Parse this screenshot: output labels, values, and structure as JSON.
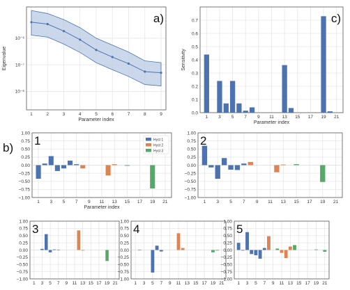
{
  "colors": {
    "hyst1": "#4c72b0",
    "hyst2": "#dd8452",
    "hyst3": "#55a868",
    "line": "#4c72b0",
    "band": "#b9cbe4",
    "grid": "#e6e6e6",
    "axis": "#555555"
  },
  "chart_data": [
    {
      "id": "a",
      "type": "line",
      "panel_label": "a)",
      "xlabel": "Parameter index",
      "ylabel": "Eigenvalue",
      "yscale": "log",
      "ylim": [
        2e-09,
        1.5e-05
      ],
      "xlim": [
        0.7,
        9.3
      ],
      "x": [
        1,
        2,
        3,
        4,
        5,
        6,
        7,
        8,
        9
      ],
      "xticks": [
        "1",
        "2",
        "3",
        "4",
        "5",
        "6",
        "7",
        "8",
        "9"
      ],
      "yticks": [
        {
          "v": 1e-06,
          "label": "10⁻⁶"
        },
        {
          "v": 1e-07,
          "label": "10⁻⁷"
        },
        {
          "v": 1e-08,
          "label": "10⁻⁸"
        }
      ],
      "series": [
        {
          "values": [
            4e-06,
            3.4e-06,
            1.85e-06,
            8.8e-07,
            3.6e-07,
            1.95e-07,
            1.1e-07,
            5.5e-08,
            5e-08
          ],
          "band_upper": [
            1.1e-05,
            8.5e-06,
            5e-06,
            2.5e-06,
            1e-06,
            5.5e-07,
            3e-07,
            1.4e-07,
            1.2e-07
          ],
          "band_lower": [
            1.3e-06,
            1.1e-06,
            6e-07,
            2.9e-07,
            1.2e-07,
            6.5e-08,
            3.6e-08,
            1.8e-08,
            1.6e-08
          ]
        }
      ],
      "grid": true
    },
    {
      "id": "c",
      "type": "bar",
      "panel_label": "c)",
      "xlabel": "Parameter index",
      "ylabel": "Sensitivity",
      "ylim": [
        0,
        0.8
      ],
      "xlim": [
        0,
        22
      ],
      "yticks": [
        0.0,
        0.1,
        0.2,
        0.3,
        0.4,
        0.5,
        0.6,
        0.7
      ],
      "xticks": [
        1,
        3,
        5,
        7,
        9,
        11,
        13,
        15,
        17,
        19,
        21
      ],
      "x": [
        1,
        2,
        3,
        4,
        5,
        6,
        7,
        8,
        9,
        10,
        11,
        12,
        13,
        14,
        15,
        16,
        17,
        18,
        19,
        20,
        21
      ],
      "values": [
        0.44,
        0.0,
        0.24,
        0.07,
        0.24,
        0.07,
        0.015,
        0.04,
        0.0,
        0.0,
        0.0,
        0.0,
        0.36,
        0.035,
        0.0,
        0.0,
        0.0,
        0.0,
        0.73,
        0.01,
        0.0
      ],
      "grid": true
    },
    {
      "id": "b1",
      "type": "bar",
      "panel_label": "1",
      "xlabel": "Parameter index",
      "ylim": [
        -1.0,
        1.0
      ],
      "xlim": [
        0,
        22
      ],
      "yticks": [
        1.0,
        0.75,
        0.5,
        0.25,
        0.0,
        -0.25,
        -0.5,
        -0.75,
        -1.0
      ],
      "ytick_labels": [
        "1.00",
        "0.75",
        "0.50",
        "0.25",
        "0.00",
        "−0.25",
        "−0.50",
        "−0.75",
        "−1.00"
      ],
      "xticks": [
        1,
        3,
        5,
        7,
        9,
        11,
        13,
        15,
        17,
        19,
        21
      ],
      "legend": [
        "Hyst 1",
        "Hyst 2",
        "Hyst 3"
      ],
      "series": [
        {
          "name": "Hyst 1",
          "x": [
            1,
            2,
            3,
            4,
            5,
            6,
            7
          ],
          "values": [
            -0.42,
            0.05,
            0.28,
            -0.18,
            -0.1,
            0.14,
            0.03
          ]
        },
        {
          "name": "Hyst 2",
          "x": [
            8,
            12,
            13
          ],
          "values": [
            -0.1,
            -0.32,
            0.03
          ]
        },
        {
          "name": "Hyst 3",
          "x": [
            15,
            19
          ],
          "values": [
            -0.02,
            -0.72
          ]
        }
      ],
      "grid": true
    },
    {
      "id": "b2",
      "type": "bar",
      "panel_label": "2",
      "ylim": [
        -1.0,
        1.0
      ],
      "xlim": [
        0,
        22
      ],
      "yticks": [
        1.0,
        0.75,
        0.5,
        0.25,
        0.0,
        -0.25,
        -0.5,
        -0.75,
        -1.0
      ],
      "ytick_labels": [
        "1.00",
        "0.75",
        "0.50",
        "0.25",
        "0.00",
        "−0.25",
        "−0.50",
        "−0.75",
        "−1.00"
      ],
      "xticks": [
        1,
        3,
        5,
        7,
        9,
        11,
        13,
        15,
        17,
        19,
        21
      ],
      "series": [
        {
          "name": "Hyst 1",
          "x": [
            1,
            2,
            3,
            4,
            5,
            6,
            7
          ],
          "values": [
            0.6,
            -0.07,
            -0.42,
            0.22,
            -0.14,
            -0.15,
            0.05
          ]
        },
        {
          "name": "Hyst 2",
          "x": [
            8,
            12,
            13
          ],
          "values": [
            0.1,
            -0.22,
            0.02
          ]
        },
        {
          "name": "Hyst 3",
          "x": [
            15,
            19
          ],
          "values": [
            0.03,
            -0.52
          ]
        }
      ],
      "grid": true
    },
    {
      "id": "b3",
      "type": "bar",
      "panel_label": "3",
      "ylim": [
        -1.0,
        1.0
      ],
      "xlim": [
        0,
        22
      ],
      "yticks": [
        1.0,
        0.75,
        0.5,
        0.25,
        0.0,
        -0.25,
        -0.5,
        -0.75,
        -1.0
      ],
      "ytick_labels": [
        "1.00",
        "0.75",
        "0.50",
        "0.25",
        "0.00",
        "−0.25",
        "−0.50",
        "−0.75",
        "−1.00"
      ],
      "xticks": [
        1,
        3,
        5,
        7,
        9,
        11,
        13,
        15,
        17,
        19,
        21
      ],
      "series": [
        {
          "name": "Hyst 1",
          "x": [
            3,
            4,
            5,
            6,
            7
          ],
          "values": [
            0.04,
            0.55,
            -0.08,
            0.02,
            0.01
          ]
        },
        {
          "name": "Hyst 2",
          "x": [
            12,
            13
          ],
          "values": [
            0.68,
            -0.02
          ]
        },
        {
          "name": "Hyst 3",
          "x": [
            19
          ],
          "values": [
            -0.38
          ]
        }
      ],
      "grid": true
    },
    {
      "id": "b4",
      "type": "bar",
      "panel_label": "4",
      "ylim": [
        -1.0,
        1.0
      ],
      "xlim": [
        0,
        22
      ],
      "yticks": [
        1.0,
        0.75,
        0.5,
        0.25,
        0.0,
        -0.25,
        -0.5,
        -0.75,
        -1.0
      ],
      "ytick_labels": [
        "1.00",
        "0.75",
        "0.50",
        "0.25",
        "0.00",
        "−0.25",
        "−0.50",
        "−0.75",
        "−1.00"
      ],
      "xticks": [
        1,
        3,
        5,
        7,
        9,
        11,
        13,
        15,
        17,
        19,
        21
      ],
      "series": [
        {
          "name": "Hyst 1",
          "x": [
            2,
            5,
            6,
            7
          ],
          "values": [
            -0.01,
            -0.78,
            0.15,
            -0.05
          ]
        },
        {
          "name": "Hyst 2",
          "x": [
            11,
            12
          ],
          "values": [
            0.58,
            0.07
          ]
        },
        {
          "name": "Hyst 3",
          "x": [
            19,
            20
          ],
          "values": [
            -0.08,
            -0.02
          ]
        }
      ],
      "grid": true
    },
    {
      "id": "b5",
      "type": "bar",
      "panel_label": "5",
      "ylim": [
        -1.0,
        1.0
      ],
      "xlim": [
        0,
        22
      ],
      "yticks": [
        1.0,
        0.75,
        0.5,
        0.25,
        0.0,
        -0.25,
        -0.5,
        -0.75,
        -1.0
      ],
      "ytick_labels": [
        "1.00",
        "0.75",
        "0.50",
        "0.25",
        "0.00",
        "−0.25",
        "−0.50",
        "−0.75",
        "−1.00"
      ],
      "xticks": [
        1,
        3,
        5,
        7,
        9,
        11,
        13,
        15,
        17,
        19,
        21
      ],
      "series": [
        {
          "name": "Hyst 1",
          "x": [
            1,
            2,
            3,
            4,
            5,
            6,
            7
          ],
          "values": [
            0.25,
            -0.02,
            0.62,
            -0.14,
            -0.18,
            -0.3,
            0.07
          ]
        },
        {
          "name": "Hyst 2",
          "x": [
            8,
            11,
            12,
            13
          ],
          "values": [
            0.48,
            -0.1,
            -0.28,
            0.12
          ]
        },
        {
          "name": "Hyst 3",
          "x": [
            10,
            14,
            19,
            21
          ],
          "values": [
            0.05,
            0.17,
            0.02,
            -0.06
          ]
        }
      ],
      "grid": true
    }
  ],
  "figure_label": "b)"
}
